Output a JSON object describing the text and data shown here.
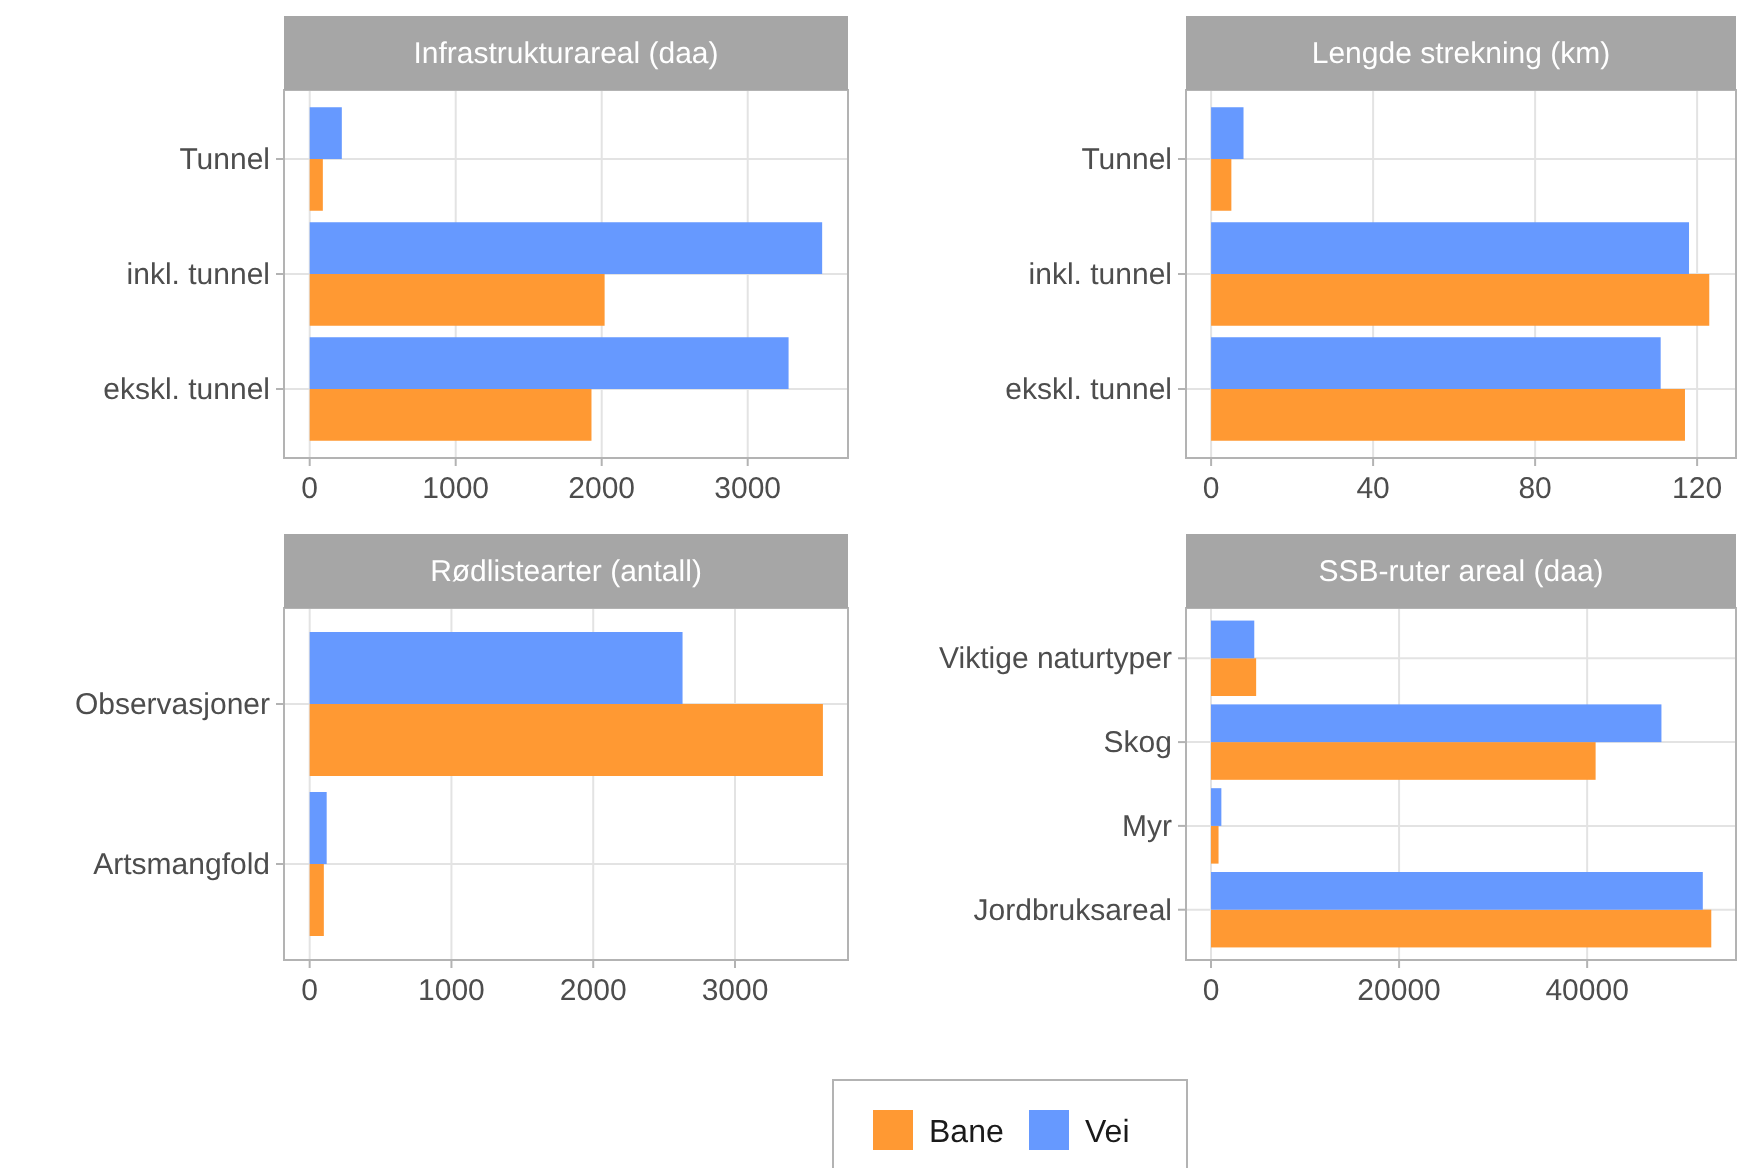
{
  "chart_data": [
    {
      "type": "bar",
      "orientation": "horizontal",
      "title": "Infrastrukturareal (daa)",
      "categories": [
        "Tunnel",
        "inkl. tunnel",
        "ekskl. tunnel"
      ],
      "series": [
        {
          "name": "Bane",
          "color": "#ff9933",
          "values": [
            90,
            2020,
            1930
          ]
        },
        {
          "name": "Vei",
          "color": "#6699ff",
          "values": [
            220,
            3510,
            3280
          ]
        }
      ],
      "xlim": [
        -176,
        3687
      ],
      "xticks": [
        0,
        1000,
        2000,
        3000
      ],
      "grid": true,
      "legend": "bottom"
    },
    {
      "type": "bar",
      "orientation": "horizontal",
      "title": "Lengde strekning (km)",
      "categories": [
        "Tunnel",
        "inkl. tunnel",
        "ekskl. tunnel"
      ],
      "series": [
        {
          "name": "Bane",
          "color": "#ff9933",
          "values": [
            5,
            123,
            117
          ]
        },
        {
          "name": "Vei",
          "color": "#6699ff",
          "values": [
            8,
            118,
            111
          ]
        }
      ],
      "xlim": [
        -6.2,
        129.6
      ],
      "xticks": [
        0,
        40,
        80,
        120
      ],
      "grid": true
    },
    {
      "type": "bar",
      "orientation": "horizontal",
      "title": "Rødlistearter (antall)",
      "categories": [
        "Observasjoner",
        "Artsmangfold"
      ],
      "series": [
        {
          "name": "Bane",
          "color": "#ff9933",
          "values": [
            3620,
            100
          ]
        },
        {
          "name": "Vei",
          "color": "#6699ff",
          "values": [
            2630,
            120
          ]
        }
      ],
      "xlim": [
        -181,
        3797
      ],
      "xticks": [
        0,
        1000,
        2000,
        3000
      ],
      "grid": true
    },
    {
      "type": "bar",
      "orientation": "horizontal",
      "title": "SSB-ruter areal (daa)",
      "categories": [
        "Viktige naturtyper",
        "Skog",
        "Myr",
        "Jordbruksareal"
      ],
      "series": [
        {
          "name": "Bane",
          "color": "#ff9933",
          "values": [
            4800,
            40900,
            800,
            53200
          ]
        },
        {
          "name": "Vei",
          "color": "#6699ff",
          "values": [
            4600,
            47900,
            1100,
            52300
          ]
        }
      ],
      "xlim": [
        -2660,
        55830
      ],
      "xticks": [
        0,
        20000,
        40000
      ],
      "grid": true
    }
  ]
}
